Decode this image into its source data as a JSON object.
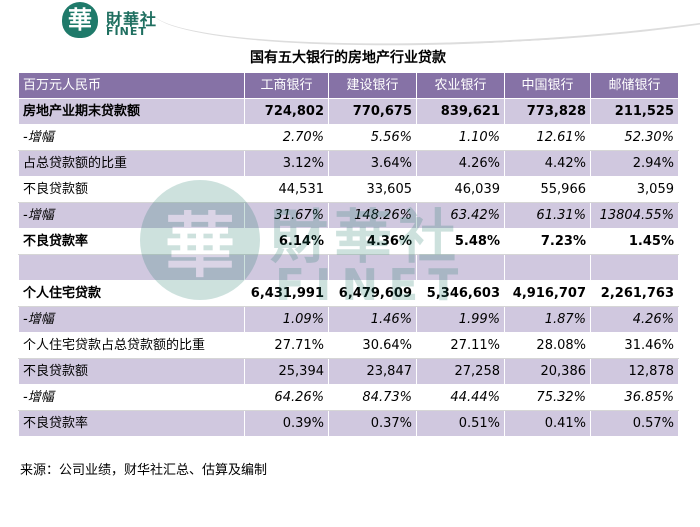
{
  "logo": {
    "char": "華",
    "cn": "財華社",
    "en": "FINET"
  },
  "title": "国有五大银行的房地产行业贷款",
  "columns": [
    "百万元人民币",
    "工商银行",
    "建设银行",
    "农业银行",
    "中国银行",
    "邮储银行"
  ],
  "rows": [
    {
      "label": "房地产业期末贷款额",
      "values": [
        "724,802",
        "770,675",
        "839,621",
        "773,828",
        "211,525"
      ]
    },
    {
      "label": "-增幅",
      "values": [
        "2.70%",
        "5.56%",
        "1.10%",
        "12.61%",
        "52.30%"
      ]
    },
    {
      "label": "占总贷款额的比重",
      "values": [
        "3.12%",
        "3.64%",
        "4.26%",
        "4.42%",
        "2.94%"
      ]
    },
    {
      "label": "不良贷款额",
      "values": [
        "44,531",
        "33,605",
        "46,039",
        "55,966",
        "3,059"
      ]
    },
    {
      "label": "-增幅",
      "values": [
        "31.67%",
        "148.26%",
        "63.42%",
        "61.31%",
        "13804.55%"
      ]
    },
    {
      "label": "不良贷款率",
      "values": [
        "6.14%",
        "4.36%",
        "5.48%",
        "7.23%",
        "1.45%"
      ]
    },
    {
      "label": "",
      "values": [
        "",
        "",
        "",
        "",
        ""
      ]
    },
    {
      "label": "个人住宅贷款",
      "values": [
        "6,431,991",
        "6,479,609",
        "5,346,603",
        "4,916,707",
        "2,261,763"
      ]
    },
    {
      "label": "-增幅",
      "values": [
        "1.09%",
        "1.46%",
        "1.99%",
        "1.87%",
        "4.26%"
      ]
    },
    {
      "label": "个人住宅贷款占总贷款额的比重",
      "values": [
        "27.71%",
        "30.64%",
        "27.11%",
        "28.08%",
        "31.46%"
      ]
    },
    {
      "label": "不良贷款额",
      "values": [
        "25,394",
        "23,847",
        "27,258",
        "20,386",
        "12,878"
      ]
    },
    {
      "label": "-增幅",
      "values": [
        "64.26%",
        "84.73%",
        "44.44%",
        "75.32%",
        "36.85%"
      ]
    },
    {
      "label": "不良贷款率",
      "values": [
        "0.39%",
        "0.37%",
        "0.51%",
        "0.41%",
        "0.57%"
      ]
    }
  ],
  "footnote": "来源：公司业绩，财华社汇总、估算及编制",
  "watermark": {
    "char": "華",
    "cn": "財華社",
    "en": "FINET"
  }
}
